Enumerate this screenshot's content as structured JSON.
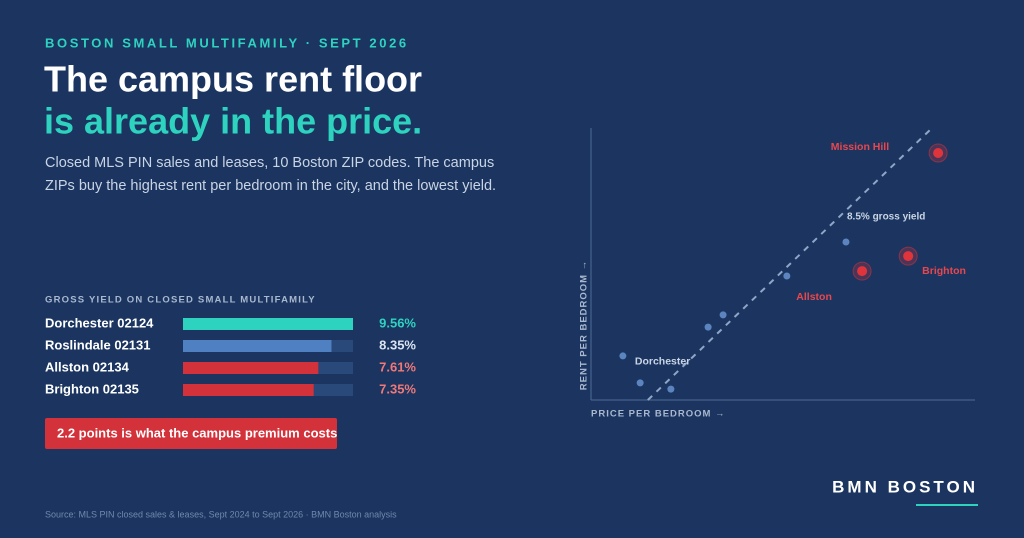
{
  "kicker": "BOSTON SMALL MULTIFAMILY · SEPT 2026",
  "headline": [
    "The campus rent floor",
    "is already in the price."
  ],
  "dek": "Closed MLS PIN sales and leases, 10 Boston ZIP codes. The campus ZIPs buy the highest rent per bedroom in the city, and the lowest yield.",
  "callout": "2.2 points is what the campus premium costs",
  "source": "Source: MLS PIN closed sales & leases, Sept 2024 to Sept 2026 · BMN Boston analysis",
  "brand": "BMN BOSTON",
  "chart_data": [
    {
      "type": "bar",
      "orientation": "horizontal",
      "title": "GROSS YIELD ON CLOSED SMALL MULTIFAMILY",
      "categories": [
        "Dorchester 02124",
        "Roslindale 02131",
        "Allston 02134",
        "Brighton 02135"
      ],
      "values": [
        9.56,
        8.35,
        7.61,
        7.35
      ],
      "value_labels": [
        "9.56%",
        "8.35%",
        "7.61%",
        "7.35%"
      ],
      "colors": [
        "#2ed3c0",
        "#4f80c2",
        "#d3323a",
        "#d3323a"
      ],
      "label_colors": [
        "#2ed3c0",
        "#dbe4f0",
        "#f07878",
        "#f07878"
      ],
      "xlim": [
        0,
        9.56
      ]
    },
    {
      "type": "scatter",
      "x_label": "PRICE PER BEDROOM →",
      "y_label": "RENT PER BEDROOM →",
      "xlim": [
        0,
        100
      ],
      "ylim": [
        0,
        100
      ],
      "x": [
        8.3,
        12.8,
        20.8,
        30.5,
        34.4,
        51.0,
        66.4,
        70.6,
        82.6,
        90.4
      ],
      "values": [
        16.2,
        6.3,
        4.0,
        26.8,
        31.3,
        45.6,
        58.1,
        47.4,
        52.9,
        90.8
      ],
      "labels": [
        "Dorchester",
        null,
        null,
        null,
        null,
        null,
        null,
        "Allston",
        "Brighton",
        "Mission Hill"
      ],
      "highlight": [
        false,
        false,
        false,
        false,
        false,
        false,
        false,
        true,
        true,
        true
      ],
      "color": "#5c85c0",
      "highlight_color": "#e0343c",
      "reference_line": {
        "label": "8.5% gross yield",
        "x": [
          14.8,
          88.3
        ],
        "y": [
          0,
          99.3
        ]
      }
    }
  ]
}
